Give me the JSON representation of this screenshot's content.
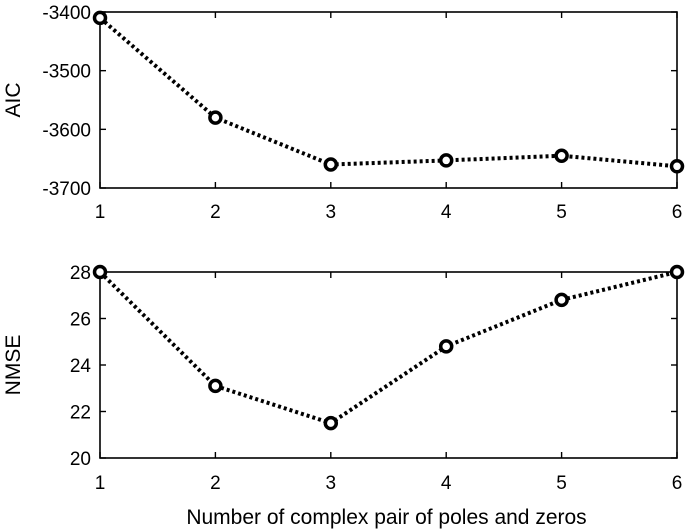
{
  "chart_data": [
    {
      "type": "line",
      "x": [
        1,
        2,
        3,
        4,
        5,
        6
      ],
      "series": [
        {
          "values": [
            -3410,
            -3580,
            -3660,
            -3653,
            -3645,
            -3663
          ]
        }
      ],
      "xlabel": "",
      "ylabel": "AIC",
      "xlim": [
        1,
        6
      ],
      "ylim": [
        -3700,
        -3400
      ],
      "xticks": [
        1,
        2,
        3,
        4,
        5,
        6
      ],
      "yticks": [
        -3400,
        -3500,
        -3600,
        -3700
      ],
      "grid": false,
      "marker": "circle",
      "line_style": "dotted",
      "color": "#000000"
    },
    {
      "type": "line",
      "x": [
        1,
        2,
        3,
        4,
        5,
        6
      ],
      "series": [
        {
          "values": [
            28.0,
            23.1,
            21.5,
            24.8,
            26.8,
            28.0
          ]
        }
      ],
      "xlabel": "Number of complex pair of poles and zeros",
      "ylabel": "NMSE",
      "xlim": [
        1,
        6
      ],
      "ylim": [
        20,
        28
      ],
      "xticks": [
        1,
        2,
        3,
        4,
        5,
        6
      ],
      "yticks": [
        20,
        22,
        24,
        26,
        28
      ],
      "grid": false,
      "marker": "circle",
      "line_style": "dotted",
      "color": "#000000"
    }
  ]
}
